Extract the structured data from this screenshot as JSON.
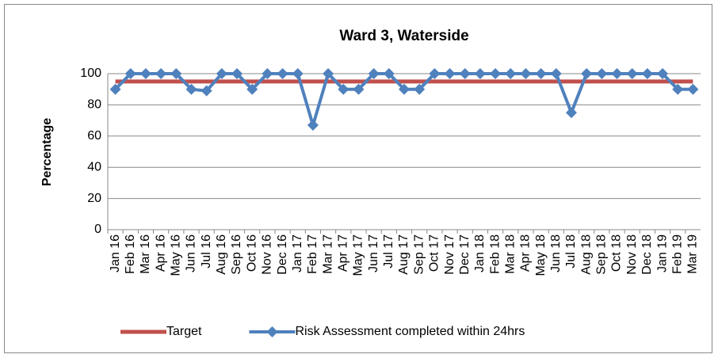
{
  "chart_data": {
    "type": "line",
    "title": "Ward 3, Waterside",
    "y_label": "Percentage",
    "categories": [
      "Jan 16",
      "Feb 16",
      "Mar 16",
      "Apr 16",
      "May 16",
      "Jun 16",
      "Jul 16",
      "Aug 16",
      "Sep 16",
      "Oct 16",
      "Nov 16",
      "Dec 16",
      "Jan 17",
      "Feb 17",
      "Mar 17",
      "Apr 17",
      "May 17",
      "Jun 17",
      "Jul 17",
      "Aug 17",
      "Sep 17",
      "Oct 17",
      "Nov 17",
      "Dec 17",
      "Jan 18",
      "Feb 18",
      "Mar 18",
      "Apr 18",
      "May 18",
      "Jun 18",
      "Jul 18",
      "Aug 18",
      "Sep 18",
      "Oct 18",
      "Nov 18",
      "Dec 18",
      "Jan 19",
      "Feb 19",
      "Mar 19"
    ],
    "series": [
      {
        "name": "Target",
        "color": "#c0504d",
        "marker": false,
        "values": [
          95,
          95,
          95,
          95,
          95,
          95,
          95,
          95,
          95,
          95,
          95,
          95,
          95,
          95,
          95,
          95,
          95,
          95,
          95,
          95,
          95,
          95,
          95,
          95,
          95,
          95,
          95,
          95,
          95,
          95,
          95,
          95,
          95,
          95,
          95,
          95,
          95,
          95,
          95
        ]
      },
      {
        "name": "Risk Assessment completed within 24hrs",
        "color": "#4f81bd",
        "marker": true,
        "values": [
          90,
          100,
          100,
          100,
          100,
          90,
          89,
          100,
          100,
          90,
          100,
          100,
          100,
          67,
          100,
          90,
          90,
          100,
          100,
          90,
          90,
          100,
          100,
          100,
          100,
          100,
          100,
          100,
          100,
          100,
          75,
          100,
          100,
          100,
          100,
          100,
          100,
          90,
          90
        ]
      }
    ],
    "ylim": [
      0,
      100
    ],
    "yticks": [
      0,
      20,
      40,
      60,
      80,
      100
    ],
    "grid": true,
    "legend": "bottom"
  }
}
